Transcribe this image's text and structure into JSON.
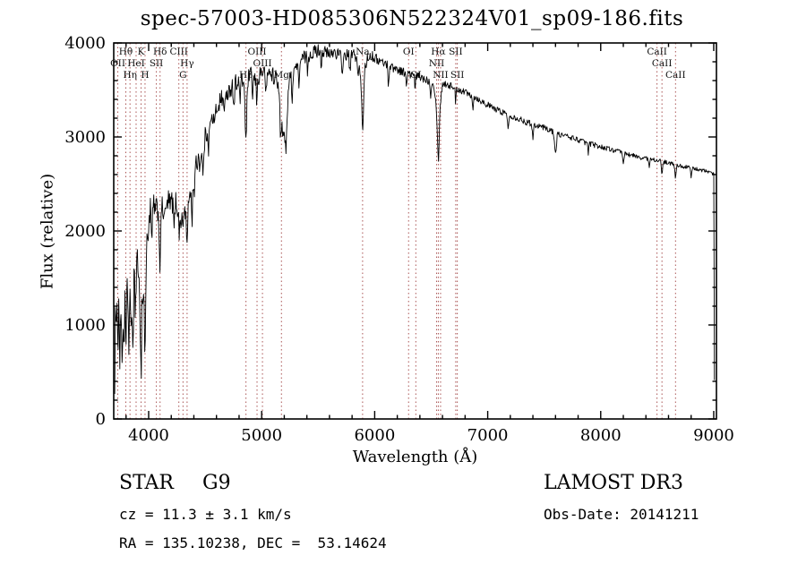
{
  "title": "spec-57003-HD085306N522324V01_sp09-186.fits",
  "footer": {
    "object_type": "STAR",
    "subclass": "G9",
    "cz_line": "cz = 11.3 ± 3.1 km/s",
    "radec_line": "RA = 135.10238, DEC =  53.14624",
    "survey": "LAMOST DR3",
    "obs_date_line": "Obs-Date: 20141211"
  },
  "chart_data": {
    "type": "line",
    "title": "spec-57003-HD085306N522324V01_sp09-186.fits",
    "xlabel": "Wavelength (Å)",
    "ylabel": "Flux (relative)",
    "xlim": [
      3691,
      9024
    ],
    "ylim": [
      0,
      4000
    ],
    "x_ticks": [
      4000,
      5000,
      6000,
      7000,
      8000,
      9000
    ],
    "y_ticks": [
      0,
      1000,
      2000,
      3000,
      4000
    ],
    "x_minor_step": 200,
    "y_minor_step": 200,
    "grid": false,
    "legend": "none",
    "line_color": "#000000",
    "marker_color": "#aa5555",
    "x_start": 3700,
    "x_end": 9006,
    "sample_step": 5,
    "noise_seed": 1234,
    "spectrum_anchors": [
      [
        3700,
        420
      ],
      [
        3706,
        1250
      ],
      [
        3713,
        650
      ],
      [
        3720,
        1400
      ],
      [
        3728,
        850
      ],
      [
        3736,
        1500
      ],
      [
        3745,
        700
      ],
      [
        3754,
        1250
      ],
      [
        3763,
        600
      ],
      [
        3772,
        1350
      ],
      [
        3781,
        800
      ],
      [
        3790,
        1200
      ],
      [
        3798,
        650
      ],
      [
        3807,
        1300
      ],
      [
        3816,
        1550
      ],
      [
        3826,
        900
      ],
      [
        3835,
        1350
      ],
      [
        3844,
        750
      ],
      [
        3853,
        1400
      ],
      [
        3862,
        950
      ],
      [
        3871,
        1650
      ],
      [
        3880,
        1100
      ],
      [
        3889,
        1500
      ],
      [
        3898,
        1750
      ],
      [
        3907,
        1300
      ],
      [
        3916,
        1700
      ],
      [
        3925,
        1150
      ],
      [
        3933,
        800
      ],
      [
        3941,
        1500
      ],
      [
        3950,
        1250
      ],
      [
        3959,
        1450
      ],
      [
        3968,
        950
      ],
      [
        3977,
        1700
      ],
      [
        3986,
        1900
      ],
      [
        4000,
        2050
      ],
      [
        4015,
        2250
      ],
      [
        4030,
        2100
      ],
      [
        4045,
        2300
      ],
      [
        4060,
        2180
      ],
      [
        4075,
        2280
      ],
      [
        4090,
        2120
      ],
      [
        4101,
        1950
      ],
      [
        4115,
        2280
      ],
      [
        4130,
        2200
      ],
      [
        4145,
        2330
      ],
      [
        4160,
        2230
      ],
      [
        4175,
        2340
      ],
      [
        4190,
        2260
      ],
      [
        4205,
        2330
      ],
      [
        4220,
        2240
      ],
      [
        4235,
        2350
      ],
      [
        4250,
        2270
      ],
      [
        4265,
        2200
      ],
      [
        4280,
        2150
      ],
      [
        4304,
        2060
      ],
      [
        4320,
        2250
      ],
      [
        4340,
        2150
      ],
      [
        4355,
        2350
      ],
      [
        4370,
        2450
      ],
      [
        4385,
        2380
      ],
      [
        4400,
        2600
      ],
      [
        4420,
        2700
      ],
      [
        4440,
        2780
      ],
      [
        4460,
        2880
      ],
      [
        4480,
        2820
      ],
      [
        4500,
        3000
      ],
      [
        4525,
        3080
      ],
      [
        4550,
        3150
      ],
      [
        4575,
        3230
      ],
      [
        4600,
        3300
      ],
      [
        4630,
        3380
      ],
      [
        4660,
        3440
      ],
      [
        4690,
        3480
      ],
      [
        4720,
        3520
      ],
      [
        4750,
        3560
      ],
      [
        4780,
        3590
      ],
      [
        4810,
        3560
      ],
      [
        4840,
        3600
      ],
      [
        4861,
        3300
      ],
      [
        4880,
        3620
      ],
      [
        4905,
        3650
      ],
      [
        4930,
        3620
      ],
      [
        4959,
        3560
      ],
      [
        4985,
        3680
      ],
      [
        5010,
        3700
      ],
      [
        5035,
        3660
      ],
      [
        5060,
        3700
      ],
      [
        5085,
        3660
      ],
      [
        5110,
        3700
      ],
      [
        5135,
        3640
      ],
      [
        5160,
        3400
      ],
      [
        5175,
        3150
      ],
      [
        5195,
        3000
      ],
      [
        5215,
        2900
      ],
      [
        5235,
        3500
      ],
      [
        5260,
        3680
      ],
      [
        5285,
        3720
      ],
      [
        5310,
        3760
      ],
      [
        5340,
        3800
      ],
      [
        5370,
        3840
      ],
      [
        5400,
        3860
      ],
      [
        5440,
        3890
      ],
      [
        5480,
        3910
      ],
      [
        5520,
        3930
      ],
      [
        5560,
        3900
      ],
      [
        5600,
        3870
      ],
      [
        5640,
        3910
      ],
      [
        5680,
        3880
      ],
      [
        5720,
        3850
      ],
      [
        5760,
        3870
      ],
      [
        5800,
        3890
      ],
      [
        5840,
        3850
      ],
      [
        5870,
        3700
      ],
      [
        5893,
        3420
      ],
      [
        5915,
        3750
      ],
      [
        5940,
        3850
      ],
      [
        5970,
        3870
      ],
      [
        6000,
        3840
      ],
      [
        6040,
        3810
      ],
      [
        6080,
        3790
      ],
      [
        6120,
        3770
      ],
      [
        6160,
        3740
      ],
      [
        6200,
        3720
      ],
      [
        6240,
        3700
      ],
      [
        6280,
        3680
      ],
      [
        6320,
        3660
      ],
      [
        6360,
        3650
      ],
      [
        6400,
        3640
      ],
      [
        6440,
        3620
      ],
      [
        6480,
        3600
      ],
      [
        6520,
        3580
      ],
      [
        6563,
        3150
      ],
      [
        6600,
        3570
      ],
      [
        6640,
        3560
      ],
      [
        6680,
        3540
      ],
      [
        6720,
        3520
      ],
      [
        6760,
        3500
      ],
      [
        6800,
        3480
      ],
      [
        6840,
        3460
      ],
      [
        6880,
        3430
      ],
      [
        6920,
        3400
      ],
      [
        6960,
        3370
      ],
      [
        7000,
        3340
      ],
      [
        7060,
        3300
      ],
      [
        7120,
        3270
      ],
      [
        7180,
        3240
      ],
      [
        7240,
        3210
      ],
      [
        7300,
        3180
      ],
      [
        7360,
        3150
      ],
      [
        7420,
        3130
      ],
      [
        7480,
        3110
      ],
      [
        7540,
        3080
      ],
      [
        7600,
        3040
      ],
      [
        7660,
        3020
      ],
      [
        7720,
        3000
      ],
      [
        7780,
        2980
      ],
      [
        7840,
        2950
      ],
      [
        7900,
        2930
      ],
      [
        7960,
        2910
      ],
      [
        8020,
        2890
      ],
      [
        8080,
        2870
      ],
      [
        8140,
        2850
      ],
      [
        8200,
        2830
      ],
      [
        8260,
        2810
      ],
      [
        8320,
        2790
      ],
      [
        8380,
        2775
      ],
      [
        8440,
        2765
      ],
      [
        8500,
        2755
      ],
      [
        8560,
        2735
      ],
      [
        8620,
        2715
      ],
      [
        8680,
        2700
      ],
      [
        8740,
        2685
      ],
      [
        8800,
        2670
      ],
      [
        8860,
        2655
      ],
      [
        8920,
        2640
      ],
      [
        8960,
        2625
      ],
      [
        8990,
        2610
      ],
      [
        9000,
        2600
      ],
      [
        9002,
        2500
      ],
      [
        9006,
        420
      ]
    ],
    "absorption_dips": [
      [
        3735,
        250,
        5
      ],
      [
        3770,
        300,
        5
      ],
      [
        3820,
        280,
        5
      ],
      [
        3860,
        300,
        5
      ],
      [
        3933,
        420,
        6
      ],
      [
        3968,
        380,
        6
      ],
      [
        4026,
        220,
        5
      ],
      [
        4101,
        320,
        6
      ],
      [
        4144,
        200,
        4
      ],
      [
        4227,
        260,
        5
      ],
      [
        4271,
        220,
        4
      ],
      [
        4340,
        300,
        6
      ],
      [
        4383,
        260,
        5
      ],
      [
        4405,
        220,
        4
      ],
      [
        4455,
        200,
        4
      ],
      [
        4481,
        260,
        5
      ],
      [
        4531,
        200,
        4
      ],
      [
        4583,
        180,
        4
      ],
      [
        4668,
        220,
        5
      ],
      [
        4703,
        180,
        4
      ],
      [
        4754,
        230,
        5
      ],
      [
        4808,
        180,
        4
      ],
      [
        4861,
        380,
        6
      ],
      [
        4920,
        200,
        4
      ],
      [
        4957,
        190,
        4
      ],
      [
        5041,
        230,
        5
      ],
      [
        5110,
        180,
        4
      ],
      [
        5167,
        250,
        6
      ],
      [
        5270,
        260,
        5
      ],
      [
        5328,
        220,
        5
      ],
      [
        5405,
        180,
        4
      ],
      [
        5528,
        160,
        4
      ],
      [
        5711,
        200,
        5
      ],
      [
        5782,
        220,
        5
      ],
      [
        5853,
        180,
        4
      ],
      [
        5893,
        380,
        7
      ],
      [
        6122,
        200,
        5
      ],
      [
        6280,
        160,
        4
      ],
      [
        6358,
        150,
        4
      ],
      [
        6495,
        160,
        4
      ],
      [
        6563,
        420,
        7
      ],
      [
        6717,
        160,
        4
      ],
      [
        6870,
        140,
        4
      ],
      [
        7180,
        160,
        5
      ],
      [
        7400,
        140,
        5
      ],
      [
        7600,
        200,
        8
      ],
      [
        7890,
        120,
        4
      ],
      [
        8200,
        130,
        5
      ],
      [
        8430,
        110,
        4
      ],
      [
        8542,
        160,
        5
      ],
      [
        8662,
        150,
        5
      ],
      [
        8800,
        110,
        4
      ]
    ],
    "noise_profile": [
      [
        3700,
        180
      ],
      [
        3900,
        180
      ],
      [
        3990,
        140
      ],
      [
        4100,
        120
      ],
      [
        4400,
        110
      ],
      [
        4700,
        100
      ],
      [
        5000,
        90
      ],
      [
        5300,
        80
      ],
      [
        5600,
        70
      ],
      [
        5900,
        60
      ],
      [
        6100,
        50
      ],
      [
        6400,
        45
      ],
      [
        6700,
        40
      ],
      [
        7000,
        35
      ],
      [
        7400,
        32
      ],
      [
        7800,
        30
      ],
      [
        8200,
        26
      ],
      [
        8600,
        22
      ],
      [
        9006,
        18
      ]
    ],
    "spectral_lines": [
      {
        "label": "OII",
        "wavelength": 3727,
        "row": 1
      },
      {
        "label": "Hθ",
        "wavelength": 3798,
        "row": 0
      },
      {
        "label": "Hη",
        "wavelength": 3835,
        "row": 2
      },
      {
        "label": "HeI",
        "wavelength": 3889,
        "row": 1
      },
      {
        "label": "K",
        "wavelength": 3933,
        "row": 0
      },
      {
        "label": "H",
        "wavelength": 3968,
        "row": 2
      },
      {
        "label": "SII",
        "wavelength": 4068,
        "row": 1
      },
      {
        "label": "Hδ",
        "wavelength": 4101,
        "row": 0
      },
      {
        "label": "CIII",
        "wavelength": 4267,
        "row": 0
      },
      {
        "label": "G",
        "wavelength": 4304,
        "row": 2
      },
      {
        "label": "Hγ",
        "wavelength": 4340,
        "row": 1
      },
      {
        "label": "Hβ",
        "wavelength": 4861,
        "row": 2
      },
      {
        "label": "OIII",
        "wavelength": 4959,
        "row": 0
      },
      {
        "label": "OIII",
        "wavelength": 5007,
        "row": 1
      },
      {
        "label": "Mg",
        "wavelength": 5175,
        "row": 2
      },
      {
        "label": "Na",
        "wavelength": 5893,
        "row": 0
      },
      {
        "label": "OI",
        "wavelength": 6300,
        "row": 0
      },
      {
        "label": "OI",
        "wavelength": 6364,
        "row": 2
      },
      {
        "label": "NII",
        "wavelength": 6548,
        "row": 1
      },
      {
        "label": "Hα",
        "wavelength": 6563,
        "row": 0
      },
      {
        "label": "NII",
        "wavelength": 6583,
        "row": 2
      },
      {
        "label": "SII",
        "wavelength": 6717,
        "row": 0
      },
      {
        "label": "SII",
        "wavelength": 6731,
        "row": 2
      },
      {
        "label": "CaII",
        "wavelength": 8498,
        "row": 0
      },
      {
        "label": "CaII",
        "wavelength": 8542,
        "row": 1
      },
      {
        "label": "CaII",
        "wavelength": 8662,
        "row": 2
      }
    ]
  }
}
